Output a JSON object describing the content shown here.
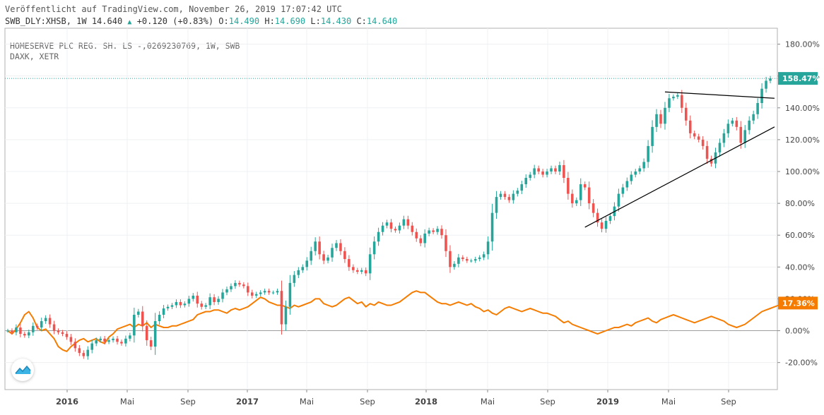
{
  "header": {
    "published": "Veröffentlicht auf TradingView.com, November 26, 2019 17:07:42 UTC",
    "symbol": "SWB_DLY:XHSB, 1W",
    "last": "14.640",
    "change": "+0.120 (+0.83%)",
    "o_label": "O:",
    "o": "14.490",
    "h_label": "H:",
    "h": "14.690",
    "l_label": "L:",
    "l": "14.430",
    "c_label": "C:",
    "c": "14.640"
  },
  "legend": {
    "line1": "HOMESERVE PLC REG. SH. LS -,0269230769, 1W, SWB",
    "line2": "DAXK, XETR"
  },
  "colors": {
    "up": "#26a69a",
    "down": "#ef5350",
    "compare": "#f57c00",
    "trendline": "#000000",
    "last_price_line": "#26a69a"
  },
  "badges": {
    "price": "158.47%",
    "compare": "17.36%"
  },
  "chart_data": {
    "type": "candlestick",
    "y_scale": "percent",
    "ylim": [
      -37,
      190
    ],
    "y_ticks": [
      "180.00%",
      "160.00%",
      "140.00%",
      "120.00%",
      "100.00%",
      "80.00%",
      "60.00%",
      "40.00%",
      "20.00%",
      "0.00%",
      "-20.00%"
    ],
    "x_ticks": [
      {
        "label": "2016",
        "major": true
      },
      {
        "label": "Mai",
        "major": false
      },
      {
        "label": "Sep",
        "major": false
      },
      {
        "label": "2017",
        "major": true
      },
      {
        "label": "Mai",
        "major": false
      },
      {
        "label": "Sep",
        "major": false
      },
      {
        "label": "2018",
        "major": true
      },
      {
        "label": "Mai",
        "major": false
      },
      {
        "label": "Sep",
        "major": false
      },
      {
        "label": "2019",
        "major": true
      },
      {
        "label": "Mai",
        "major": false
      },
      {
        "label": "Sep",
        "major": false
      }
    ],
    "series": [
      {
        "name": "SWB_DLY:XHSB",
        "kind": "candles",
        "values": [
          0,
          -1,
          2,
          -2,
          -3,
          -1,
          3,
          2,
          6,
          8,
          4,
          0,
          -1,
          -2,
          -4,
          -7,
          -11,
          -14,
          -16,
          -12,
          -8,
          -6,
          -5,
          -7,
          -6,
          -5,
          -7,
          -8,
          -5,
          -3,
          10,
          12,
          3,
          -6,
          -10,
          6,
          10,
          14,
          15,
          16,
          18,
          16,
          17,
          20,
          22,
          17,
          15,
          16,
          21,
          18,
          20,
          24,
          26,
          28,
          30,
          29,
          28,
          24,
          22,
          23,
          24,
          25,
          24,
          24,
          25,
          4,
          15,
          30,
          35,
          38,
          40,
          44,
          50,
          56,
          48,
          44,
          46,
          52,
          55,
          50,
          45,
          40,
          38,
          37,
          38,
          36,
          48,
          56,
          62,
          66,
          68,
          64,
          63,
          66,
          70,
          66,
          62,
          58,
          55,
          61,
          63,
          62,
          64,
          60,
          50,
          40,
          42,
          46,
          45,
          44,
          44,
          45,
          46,
          48,
          56,
          74,
          84,
          86,
          84,
          82,
          86,
          88,
          92,
          96,
          98,
          102,
          100,
          98,
          100,
          102,
          100,
          104,
          96,
          86,
          80,
          82,
          92,
          90,
          80,
          74,
          68,
          64,
          69,
          72,
          78,
          86,
          90,
          94,
          98,
          100,
          102,
          106,
          116,
          128,
          136,
          130,
          140,
          146,
          147,
          148,
          140,
          132,
          124,
          122,
          120,
          116,
          108,
          105,
          112,
          118,
          124,
          130,
          132,
          128,
          118,
          126,
          132,
          136,
          143,
          152,
          157,
          158.47
        ],
        "last": 158.47
      },
      {
        "name": "DAXK, XETR",
        "kind": "line",
        "values": [
          0,
          -2,
          1,
          5,
          10,
          12,
          8,
          2,
          0,
          1,
          -2,
          -5,
          -10,
          -12,
          -13,
          -10,
          -8,
          -6,
          -5,
          -7,
          -6,
          -5,
          -7,
          -8,
          -4,
          -2,
          1,
          2,
          3,
          4,
          2,
          4,
          3,
          5,
          2,
          4,
          3,
          2,
          2,
          3,
          3,
          4,
          5,
          6,
          7,
          10,
          11,
          12,
          12,
          13,
          13,
          12,
          11,
          13,
          14,
          13,
          14,
          15,
          17,
          19,
          21,
          20,
          18,
          17,
          16,
          16,
          15,
          14,
          16,
          15,
          16,
          17,
          18,
          20,
          20,
          17,
          16,
          15,
          16,
          18,
          20,
          21,
          19,
          17,
          18,
          15,
          17,
          16,
          18,
          17,
          16,
          16,
          17,
          18,
          20,
          22,
          24,
          25,
          24,
          24,
          22,
          20,
          18,
          17,
          17,
          16,
          17,
          18,
          17,
          16,
          17,
          15,
          14,
          12,
          13,
          11,
          10,
          12,
          14,
          15,
          14,
          13,
          12,
          13,
          14,
          13,
          12,
          11,
          11,
          10,
          9,
          7,
          5,
          6,
          4,
          3,
          2,
          1,
          0,
          -1,
          -2,
          -1,
          0,
          1,
          2,
          2,
          3,
          4,
          3,
          5,
          6,
          7,
          8,
          6,
          5,
          7,
          8,
          9,
          10,
          9,
          8,
          7,
          6,
          5,
          6,
          7,
          8,
          9,
          8,
          7,
          6,
          4,
          3,
          2,
          3,
          4,
          6,
          8,
          10,
          12,
          13,
          14,
          15,
          16,
          17,
          17.36
        ],
        "last": 17.36
      }
    ],
    "annotations": [
      {
        "kind": "trendline",
        "from": {
          "index": 137,
          "value": 65
        },
        "to": {
          "index": 182,
          "value": 128
        }
      },
      {
        "kind": "trendline",
        "from": {
          "index": 156,
          "value": 150
        },
        "to": {
          "index": 182,
          "value": 146
        }
      }
    ]
  }
}
